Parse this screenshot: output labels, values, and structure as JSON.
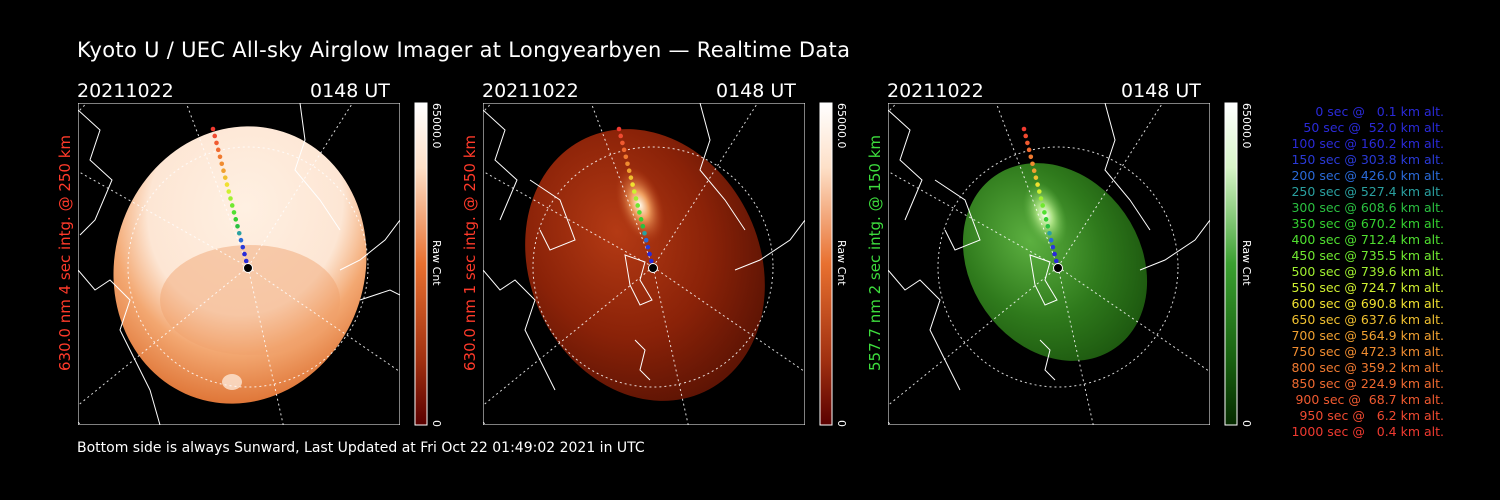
{
  "header": {
    "title": "Kyoto U / UEC All-sky Airglow Imager at Longyearbyen — Realtime Data"
  },
  "panels": [
    {
      "date": "20211022",
      "time": "0148 UT",
      "label": "630.0 nm 4 sec intg. @ 250 km",
      "label_color": "#ff3a2a",
      "colorbar": {
        "max": "65000.0",
        "unit": "Raw Cnt",
        "zero": "0",
        "top_color": "#fff3ea",
        "mid_color": "#e87030",
        "bottom_color": "#6a0000"
      }
    },
    {
      "date": "20211022",
      "time": "0148 UT",
      "label": "630.0 nm 1 sec intg. @ 250 km",
      "label_color": "#ff3a2a",
      "colorbar": {
        "max": "65000.0",
        "unit": "Raw Cnt",
        "zero": "0",
        "top_color": "#fff3ea",
        "mid_color": "#e87030",
        "bottom_color": "#6a0000"
      }
    },
    {
      "date": "20211022",
      "time": "0148 UT",
      "label": "557.7 nm 2 sec intg. @ 150 km",
      "label_color": "#3ddc3d",
      "colorbar": {
        "max": "65000.0",
        "unit": "Raw Cnt",
        "zero": "0",
        "top_color": "#f4fff0",
        "mid_color": "#3aa030",
        "bottom_color": "#083a00"
      }
    }
  ],
  "legend": {
    "rows": [
      {
        "text": "0 sec @   0.1 km alt.",
        "color": "#2a2ad8"
      },
      {
        "text": "50 sec @  52.0 km alt.",
        "color": "#2a2ad8"
      },
      {
        "text": "100 sec @ 160.2 km alt.",
        "color": "#2a2ad8"
      },
      {
        "text": "150 sec @ 303.8 km alt.",
        "color": "#2a3ad8"
      },
      {
        "text": "200 sec @ 426.0 km alt.",
        "color": "#2a6ad8"
      },
      {
        "text": "250 sec @ 527.4 km alt.",
        "color": "#2aa0a0"
      },
      {
        "text": "300 sec @ 608.6 km alt.",
        "color": "#2ac040"
      },
      {
        "text": "350 sec @ 670.2 km alt.",
        "color": "#34d030"
      },
      {
        "text": "400 sec @ 712.4 km alt.",
        "color": "#50e030"
      },
      {
        "text": "450 sec @ 735.5 km alt.",
        "color": "#70e830"
      },
      {
        "text": "500 sec @ 739.6 km alt.",
        "color": "#a0f030"
      },
      {
        "text": "550 sec @ 724.7 km alt.",
        "color": "#d0f030"
      },
      {
        "text": "600 sec @ 690.8 km alt.",
        "color": "#f0e030"
      },
      {
        "text": "650 sec @ 637.6 km alt.",
        "color": "#f0c030"
      },
      {
        "text": "700 sec @ 564.9 km alt.",
        "color": "#f0a030"
      },
      {
        "text": "750 sec @ 472.3 km alt.",
        "color": "#f08c30"
      },
      {
        "text": "800 sec @ 359.2 km alt.",
        "color": "#f07a30"
      },
      {
        "text": "850 sec @ 224.9 km alt.",
        "color": "#f06a30"
      },
      {
        "text": "900 sec @  68.7 km alt.",
        "color": "#f05a30"
      },
      {
        "text": "950 sec @   6.2 km alt.",
        "color": "#f04a30"
      },
      {
        "text": "1000 sec @   0.4 km alt.",
        "color": "#f03a30"
      }
    ]
  },
  "footer": {
    "text": "Bottom side is always Sunward, Last Updated at Fri Oct 22 01:49:02 2021 in UTC"
  }
}
